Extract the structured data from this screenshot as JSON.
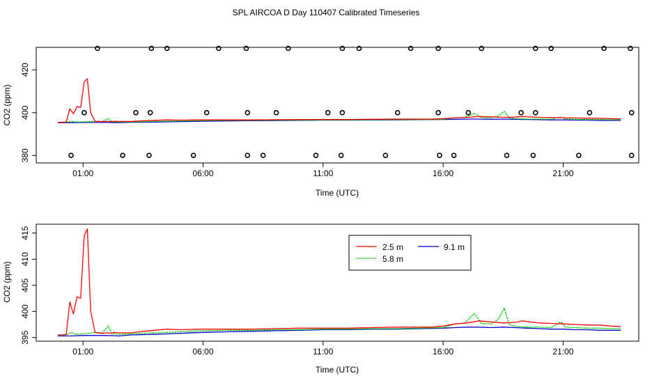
{
  "figure_title": "SPL AIRCOA D  Day 110407  Calibrated Timeseries",
  "chart_data": [
    {
      "type": "line",
      "title": "",
      "xlabel": "Time (UTC)",
      "ylabel": "CO2 (ppm)",
      "xlim": [
        -0.95,
        24.15
      ],
      "ylim": [
        376.5,
        430.5
      ],
      "x_ticks": [
        1,
        6,
        11,
        16,
        21
      ],
      "x_tick_labels": [
        "01:00",
        "06:00",
        "11:00",
        "16:00",
        "21:00"
      ],
      "y_ticks": [
        380,
        400,
        420
      ],
      "y_tick_labels": [
        "380",
        "400",
        "420"
      ],
      "series": [
        {
          "name": "2.5 m",
          "color": "#ff0000",
          "points": [
            [
              -0.05,
              395.5
            ],
            [
              0.1,
              395.5
            ],
            [
              0.3,
              395.6
            ],
            [
              0.45,
              401.8
            ],
            [
              0.6,
              399.5
            ],
            [
              0.75,
              402.8
            ],
            [
              0.9,
              402.5
            ],
            [
              1.05,
              414.5
            ],
            [
              1.18,
              415.8
            ],
            [
              1.32,
              400
            ],
            [
              1.5,
              396
            ],
            [
              1.8,
              395.8
            ],
            [
              2.0,
              395.9
            ],
            [
              2.2,
              395.8
            ],
            [
              2.3,
              396
            ],
            [
              2.5,
              395.9
            ],
            [
              3.0,
              395.9
            ],
            [
              3.5,
              396.2
            ],
            [
              4.0,
              396.4
            ],
            [
              4.5,
              396.6
            ],
            [
              5,
              396.5
            ],
            [
              6,
              396.6
            ],
            [
              7,
              396.6
            ],
            [
              8,
              396.6
            ],
            [
              9,
              396.7
            ],
            [
              10,
              396.8
            ],
            [
              11,
              396.8
            ],
            [
              12,
              396.8
            ],
            [
              13,
              396.9
            ],
            [
              14,
              397
            ],
            [
              15,
              397
            ],
            [
              15.5,
              397
            ],
            [
              16,
              397.2
            ],
            [
              16.5,
              397.6
            ],
            [
              17,
              397.8
            ],
            [
              17.5,
              398.2
            ],
            [
              18,
              398
            ],
            [
              18.5,
              397.8
            ],
            [
              19,
              397.9
            ],
            [
              19.3,
              398.2
            ],
            [
              19.6,
              398
            ],
            [
              20,
              397.8
            ],
            [
              20.5,
              397.7
            ],
            [
              21,
              397.6
            ],
            [
              21.5,
              397.5
            ],
            [
              22,
              397.4
            ],
            [
              22.5,
              397.4
            ],
            [
              23,
              397.2
            ],
            [
              23.4,
              397.1
            ]
          ]
        },
        {
          "name": "5.8 m",
          "color": "#00cc00",
          "points": [
            [
              -0.05,
              395.5
            ],
            [
              0.3,
              395.5
            ],
            [
              0.5,
              396
            ],
            [
              0.7,
              395.6
            ],
            [
              1.0,
              395.7
            ],
            [
              1.2,
              395.8
            ],
            [
              1.5,
              396
            ],
            [
              1.8,
              395.9
            ],
            [
              2.05,
              397.2
            ],
            [
              2.2,
              395.8
            ],
            [
              2.5,
              395.6
            ],
            [
              3,
              395.7
            ],
            [
              4,
              395.9
            ],
            [
              5,
              396.1
            ],
            [
              6,
              396.3
            ],
            [
              7,
              396.4
            ],
            [
              8,
              396.4
            ],
            [
              9,
              396.5
            ],
            [
              10,
              396.5
            ],
            [
              11,
              396.6
            ],
            [
              12,
              396.6
            ],
            [
              13,
              396.7
            ],
            [
              14,
              396.7
            ],
            [
              15,
              396.8
            ],
            [
              16,
              396.9
            ],
            [
              16.5,
              397.6
            ],
            [
              16.9,
              397.8
            ],
            [
              17.3,
              399.6
            ],
            [
              17.6,
              397.7
            ],
            [
              18,
              397.6
            ],
            [
              18.3,
              398.5
            ],
            [
              18.55,
              400.6
            ],
            [
              18.75,
              397.5
            ],
            [
              19,
              397.2
            ],
            [
              19.5,
              397
            ],
            [
              20,
              397
            ],
            [
              20.5,
              396.9
            ],
            [
              20.9,
              398
            ],
            [
              21.1,
              397
            ],
            [
              21.5,
              396.9
            ],
            [
              22,
              396.8
            ],
            [
              22.5,
              396.8
            ],
            [
              23,
              396.7
            ],
            [
              23.4,
              396.7
            ]
          ]
        },
        {
          "name": "9.1 m",
          "color": "#0000cc",
          "points": [
            [
              -0.05,
              395.3
            ],
            [
              0.5,
              395.3
            ],
            [
              1.0,
              395.4
            ],
            [
              1.5,
              395.4
            ],
            [
              2,
              395.4
            ],
            [
              2.5,
              395.3
            ],
            [
              3,
              395.5
            ],
            [
              4,
              395.6
            ],
            [
              5,
              395.8
            ],
            [
              6,
              396
            ],
            [
              7,
              396.1
            ],
            [
              8,
              396.2
            ],
            [
              9,
              396.3
            ],
            [
              10,
              396.4
            ],
            [
              11,
              396.5
            ],
            [
              12,
              396.5
            ],
            [
              13,
              396.6
            ],
            [
              14,
              396.6
            ],
            [
              15,
              396.7
            ],
            [
              16,
              396.8
            ],
            [
              16.5,
              396.9
            ],
            [
              17,
              397
            ],
            [
              17.5,
              397
            ],
            [
              18,
              396.9
            ],
            [
              18.5,
              397
            ],
            [
              19,
              396.9
            ],
            [
              19.5,
              396.8
            ],
            [
              20,
              396.7
            ],
            [
              20.5,
              396.6
            ],
            [
              21,
              396.6
            ],
            [
              21.5,
              396.5
            ],
            [
              22,
              396.5
            ],
            [
              22.5,
              396.4
            ],
            [
              23,
              396.4
            ],
            [
              23.4,
              396.4
            ]
          ]
        }
      ],
      "calibration_points": [
        {
          "series": "high",
          "y": 430,
          "x": [
            1.6,
            3.85,
            4.5,
            6.65,
            7.8,
            9.55,
            11.8,
            12.5,
            14.65,
            15.8,
            17.6,
            19.85,
            20.5,
            22.7,
            23.8
          ]
        },
        {
          "series": "mid",
          "y": 400,
          "x": [
            1.05,
            3.2,
            3.8,
            6.15,
            7.85,
            9.05,
            11.2,
            11.8,
            14.1,
            15.8,
            17.05,
            19.25,
            19.85,
            22.1,
            23.85
          ]
        },
        {
          "series": "low",
          "y": 380,
          "x": [
            0.5,
            2.65,
            3.75,
            5.6,
            7.85,
            8.5,
            10.7,
            11.75,
            13.6,
            15.85,
            16.45,
            18.65,
            19.75,
            21.65,
            23.85
          ]
        }
      ]
    },
    {
      "type": "line",
      "title": "",
      "xlabel": "Time (UTC)",
      "ylabel": "CO2 (ppm)",
      "xlim": [
        -0.95,
        24.15
      ],
      "ylim": [
        394.3,
        416.7
      ],
      "x_ticks": [
        1,
        6,
        11,
        16,
        21
      ],
      "x_tick_labels": [
        "01:00",
        "06:00",
        "11:00",
        "16:00",
        "21:00"
      ],
      "y_ticks": [
        395,
        400,
        405,
        410,
        415
      ],
      "y_tick_labels": [
        "395",
        "400",
        "405",
        "410",
        "415"
      ],
      "legend": {
        "placement": "top-center",
        "entries": [
          "2.5 m",
          "9.1 m",
          "5.8 m"
        ]
      },
      "series_ref": "same as chart 1 series (2.5 m, 5.8 m, 9.1 m)"
    }
  ]
}
